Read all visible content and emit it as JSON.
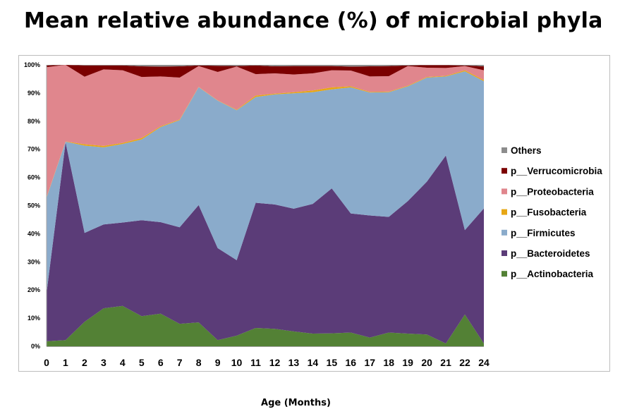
{
  "chart_data": {
    "type": "area",
    "stacked": true,
    "normalized_percent": true,
    "title": "Mean relative abundance (%) of microbial phyla",
    "xlabel": "Age (Months)",
    "ylabel": "",
    "ylim": [
      0,
      100
    ],
    "yticks": [
      "0%",
      "10%",
      "20%",
      "30%",
      "40%",
      "50%",
      "60%",
      "70%",
      "80%",
      "90%",
      "100%"
    ],
    "categories": [
      "0",
      "1",
      "2",
      "3",
      "4",
      "5",
      "6",
      "7",
      "8",
      "9",
      "10",
      "11",
      "12",
      "13",
      "14",
      "15",
      "16",
      "17",
      "18",
      "19",
      "20",
      "21",
      "22",
      "24"
    ],
    "legend_position": "right",
    "series": [
      {
        "name": "p__Actinobacteria",
        "color": "#538135",
        "values": [
          1.8,
          2.2,
          8.7,
          13.5,
          14.3,
          10.7,
          11.6,
          8.0,
          8.5,
          2.2,
          3.8,
          6.5,
          6.2,
          5.3,
          4.5,
          4.6,
          4.9,
          3.1,
          4.9,
          4.5,
          4.2,
          1.0,
          11.3,
          1.0
        ]
      },
      {
        "name": "p__Bacteroidetes",
        "color": "#5b3c78",
        "values": [
          17.2,
          70.3,
          31.6,
          29.8,
          29.5,
          34.1,
          32.5,
          34.3,
          41.7,
          32.7,
          26.8,
          44.5,
          44.2,
          43.6,
          46.1,
          51.5,
          42.3,
          43.4,
          41.1,
          47.1,
          54.3,
          66.8,
          30.0,
          48.0
        ]
      },
      {
        "name": "p__Firmicutes",
        "color": "#8aabcb",
        "values": [
          33.8,
          0.2,
          31.0,
          27.4,
          27.8,
          28.7,
          33.8,
          38.1,
          41.9,
          52.4,
          53.3,
          37.6,
          39.1,
          41.0,
          39.7,
          35.2,
          44.8,
          43.7,
          44.3,
          40.8,
          37.0,
          28.1,
          56.4,
          45.2
        ]
      },
      {
        "name": "p__Fusobacteria",
        "color": "#e7a715",
        "values": [
          0.2,
          0.1,
          0.5,
          0.5,
          0.4,
          0.5,
          0.3,
          0.2,
          0.1,
          0.1,
          0.2,
          0.5,
          0.3,
          0.4,
          0.6,
          0.7,
          0.4,
          0.2,
          0.2,
          0.2,
          0.2,
          0.2,
          0.4,
          0.4
        ]
      },
      {
        "name": "p__Proteobacteria",
        "color": "#e0868d",
        "values": [
          46.2,
          27.2,
          24.0,
          27.2,
          25.7,
          21.7,
          17.7,
          14.9,
          7.4,
          10.1,
          15.3,
          7.6,
          7.2,
          6.3,
          6.1,
          6.1,
          5.6,
          5.5,
          5.5,
          7.0,
          3.3,
          2.8,
          1.5,
          3.5
        ]
      },
      {
        "name": "p__Verrucomicrobia",
        "color": "#7b0000",
        "values": [
          0.6,
          0.0,
          4.0,
          1.4,
          1.7,
          3.8,
          3.5,
          4.0,
          0.2,
          2.2,
          0.2,
          3.1,
          2.5,
          3.0,
          2.6,
          1.5,
          1.4,
          3.6,
          3.6,
          0.2,
          0.9,
          1.0,
          0.2,
          1.4
        ]
      },
      {
        "name": "Others",
        "color": "#8c8c8c",
        "values": [
          0.2,
          0.0,
          0.2,
          0.2,
          0.2,
          0.5,
          0.6,
          0.5,
          0.2,
          0.3,
          0.4,
          0.2,
          0.5,
          0.4,
          0.4,
          0.4,
          0.6,
          0.5,
          0.4,
          0.2,
          0.1,
          0.1,
          0.2,
          0.5
        ]
      }
    ],
    "legend_order": [
      "Others",
      "p__Verrucomicrobia",
      "p__Proteobacteria",
      "p__Fusobacteria",
      "p__Firmicutes",
      "p__Bacteroidetes",
      "p__Actinobacteria"
    ]
  }
}
